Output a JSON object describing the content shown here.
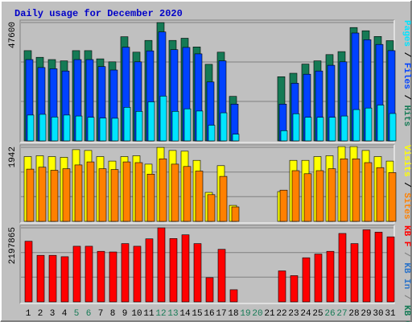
{
  "chart_data": {
    "type": "bar",
    "title": "Daily usage for December 2020",
    "categories": [
      "1",
      "2",
      "3",
      "4",
      "5",
      "6",
      "7",
      "8",
      "9",
      "10",
      "11",
      "12",
      "13",
      "14",
      "15",
      "16",
      "17",
      "18",
      "19",
      "20",
      "21",
      "22",
      "23",
      "24",
      "25",
      "26",
      "27",
      "28",
      "29",
      "30",
      "31"
    ],
    "weekend_days": [
      "5",
      "6",
      "12",
      "13",
      "19",
      "20",
      "26",
      "27"
    ],
    "panels": [
      {
        "name": "requests",
        "max_label": "47600",
        "ylim": [
          0,
          47600
        ],
        "legend": [
          {
            "text": "Pages",
            "color": "#00e4ff"
          },
          {
            "text": "Files",
            "color": "#0042ff"
          },
          {
            "text": "Hits",
            "color": "#157a55"
          }
        ],
        "series": [
          {
            "name": "Hits",
            "color": "#157a55",
            "values": [
              36300,
              33600,
              32700,
              32200,
              36300,
              36300,
              33000,
              31800,
              41900,
              35700,
              40400,
              47600,
              40400,
              41300,
              37800,
              30800,
              35700,
              17900,
              null,
              null,
              null,
              25800,
              27200,
              30900,
              32200,
              34700,
              35900,
              45600,
              44300,
              42000,
              40300
            ]
          },
          {
            "name": "Files",
            "color": "#0042ff",
            "values": [
              32700,
              29500,
              29000,
              28100,
              32700,
              32700,
              29900,
              28500,
              37700,
              31800,
              36200,
              43800,
              36700,
              37600,
              35000,
              23700,
              32200,
              14800,
              null,
              null,
              null,
              14800,
              23200,
              26800,
              28100,
              30400,
              31800,
              43400,
              40700,
              38800,
              36300
            ]
          },
          {
            "name": "Pages",
            "color": "#00e4ff",
            "values": [
              10400,
              10700,
              9600,
              10400,
              10000,
              9500,
              9200,
              9100,
              13500,
              11900,
              15700,
              18000,
              11900,
              12900,
              12000,
              6300,
              11300,
              2700,
              null,
              null,
              null,
              4100,
              10900,
              9500,
              9500,
              9500,
              10000,
              12600,
              13200,
              14400,
              11000
            ]
          }
        ]
      },
      {
        "name": "visitors",
        "max_label": "1942",
        "ylim": [
          0,
          1942
        ],
        "legend": [
          {
            "text": "Visits",
            "color": "#ffff00"
          },
          {
            "text": "Sites",
            "color": "#ff8000"
          }
        ],
        "series": [
          {
            "name": "Visits",
            "color": "#ffff00",
            "values": [
              1700,
              1720,
              1700,
              1680,
              1880,
              1860,
              1700,
              1580,
              1700,
              1720,
              1500,
              1940,
              1860,
              1840,
              1600,
              760,
              1460,
              420,
              null,
              null,
              null,
              780,
              1600,
              1600,
              1700,
              1720,
              1960,
              1960,
              1860,
              1700,
              1580
            ]
          },
          {
            "name": "Sites",
            "color": "#ff8000",
            "values": [
              1370,
              1420,
              1340,
              1380,
              1480,
              1560,
              1380,
              1360,
              1560,
              1540,
              1240,
              1640,
              1500,
              1440,
              1320,
              700,
              1180,
              380,
              null,
              null,
              null,
              820,
              1330,
              1250,
              1330,
              1380,
              1640,
              1640,
              1540,
              1410,
              1280
            ]
          }
        ]
      },
      {
        "name": "kbytes",
        "max_label": "2197865",
        "ylim": [
          0,
          2197865
        ],
        "legend": [
          {
            "text": "KB F",
            "color": "#ff0000"
          },
          {
            "text": "/",
            "color": "#808080"
          },
          {
            "text": "KB In",
            "color": "#2c73c8"
          },
          {
            "text": "/",
            "color": "#808080"
          },
          {
            "text": "KB Out",
            "color": "#157a55"
          }
        ],
        "series": [
          {
            "name": "KB F",
            "color": "#ff0000",
            "values": [
              1800000,
              1380000,
              1380000,
              1340000,
              1650000,
              1650000,
              1500000,
              1480000,
              1730000,
              1650000,
              1870000,
              2197865,
              1880000,
              1990000,
              1730000,
              720000,
              1560000,
              360000,
              null,
              null,
              null,
              920000,
              780000,
              1310000,
              1420000,
              1500000,
              2030000,
              1730000,
              2140000,
              2070000,
              1930000
            ]
          }
        ]
      }
    ],
    "grid": true
  }
}
